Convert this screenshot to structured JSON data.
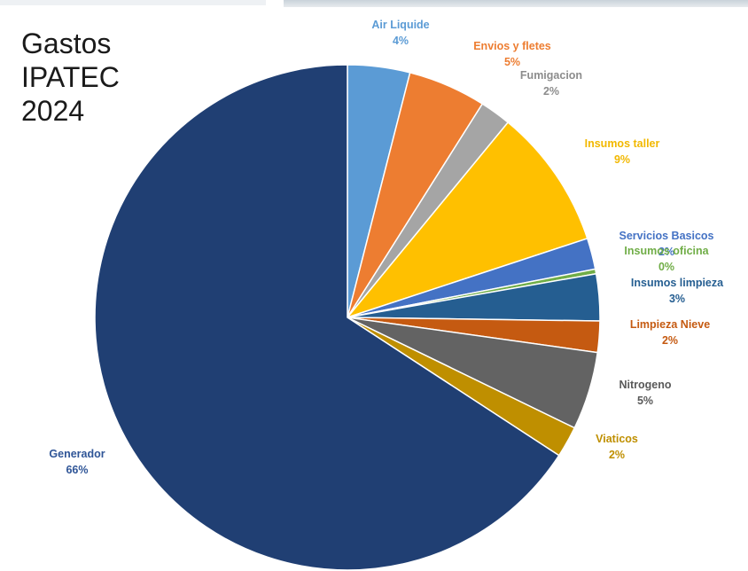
{
  "title": "Gastos\nIPATEC\n2024",
  "chart_data": {
    "type": "pie",
    "title": "Gastos IPATEC 2024",
    "start_angle_deg": 0,
    "direction": "clockwise",
    "slices": [
      {
        "label": "Air Liquide",
        "value": 4,
        "percent_label": "4%",
        "color": "#5b9bd5",
        "label_color": "#5b9bd5"
      },
      {
        "label": "Envios y fletes",
        "value": 5,
        "percent_label": "5%",
        "color": "#ed7d31",
        "label_color": "#ed7d31"
      },
      {
        "label": "Fumigacion",
        "value": 2,
        "percent_label": "2%",
        "color": "#a5a5a5",
        "label_color": "#8c8c8c"
      },
      {
        "label": "Insumos taller",
        "value": 9,
        "percent_label": "9%",
        "color": "#ffc000",
        "label_color": "#f2b800"
      },
      {
        "label": "Servicios Basicos",
        "value": 2,
        "percent_label": "2%",
        "color": "#4472c4",
        "label_color": "#4472c4"
      },
      {
        "label": "Insumos oficina",
        "value": 0.3,
        "percent_label": "0%",
        "color": "#70ad47",
        "label_color": "#70ad47"
      },
      {
        "label": "Insumos limpieza",
        "value": 3,
        "percent_label": "3%",
        "color": "#255e91",
        "label_color": "#255e91"
      },
      {
        "label": "Limpieza Nieve",
        "value": 2,
        "percent_label": "2%",
        "color": "#c55a11",
        "label_color": "#c55a11"
      },
      {
        "label": "Nitrogeno",
        "value": 5,
        "percent_label": "5%",
        "color": "#636363",
        "label_color": "#595959"
      },
      {
        "label": "Viaticos",
        "value": 2,
        "percent_label": "2%",
        "color": "#bf8f00",
        "label_color": "#bf8f00"
      },
      {
        "label": "Generador",
        "value": 66,
        "percent_label": "66%",
        "color": "#203f73",
        "label_color": "#2f5597"
      }
    ]
  }
}
